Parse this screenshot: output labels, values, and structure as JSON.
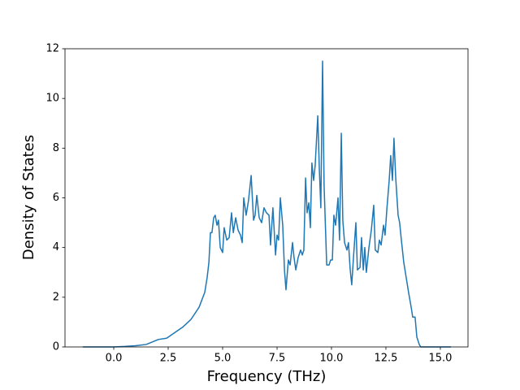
{
  "chart_data": {
    "type": "line",
    "xlabel": "Frequency (THz)",
    "ylabel": "Density of States",
    "x": [
      -1.42,
      0.0,
      0.5,
      1.0,
      1.49,
      2.05,
      2.43,
      3.17,
      3.54,
      3.92,
      4.18,
      4.29,
      4.37,
      4.44,
      4.51,
      4.59,
      4.66,
      4.74,
      4.81,
      4.89,
      5.0,
      5.07,
      5.19,
      5.3,
      5.41,
      5.49,
      5.6,
      5.71,
      5.82,
      5.9,
      5.97,
      6.08,
      6.19,
      6.31,
      6.42,
      6.49,
      6.57,
      6.68,
      6.79,
      6.9,
      7.01,
      7.13,
      7.2,
      7.31,
      7.43,
      7.5,
      7.57,
      7.65,
      7.76,
      7.84,
      7.91,
      8.02,
      8.1,
      8.21,
      8.28,
      8.36,
      8.47,
      8.58,
      8.66,
      8.73,
      8.81,
      8.88,
      8.96,
      9.03,
      9.1,
      9.18,
      9.25,
      9.37,
      9.44,
      9.51,
      9.59,
      9.66,
      9.78,
      9.89,
      9.96,
      10.04,
      10.11,
      10.19,
      10.3,
      10.37,
      10.45,
      10.52,
      10.6,
      10.71,
      10.78,
      10.86,
      10.93,
      11.01,
      11.12,
      11.19,
      11.31,
      11.38,
      11.46,
      11.53,
      11.6,
      11.72,
      11.83,
      11.94,
      12.01,
      12.13,
      12.2,
      12.28,
      12.39,
      12.46,
      12.54,
      12.65,
      12.72,
      12.8,
      12.87,
      12.95,
      13.06,
      13.13,
      13.21,
      13.32,
      13.43,
      13.54,
      13.66,
      13.73,
      13.84,
      13.92,
      14.03,
      14.1,
      15.0,
      15.49
    ],
    "series": [
      {
        "color": "#1f77b4",
        "values": [
          0,
          0,
          0.02,
          0.05,
          0.1,
          0.3,
          0.35,
          0.8,
          1.1,
          1.6,
          2.2,
          2.8,
          3.4,
          4.6,
          4.6,
          5.2,
          5.3,
          4.9,
          5.1,
          4.0,
          3.8,
          4.8,
          4.3,
          4.4,
          5.4,
          4.6,
          5.2,
          4.7,
          4.5,
          4.2,
          6.0,
          5.3,
          5.9,
          6.9,
          5.1,
          5.3,
          6.1,
          5.2,
          5.0,
          5.6,
          5.4,
          5.3,
          4.1,
          5.6,
          3.7,
          4.5,
          4.3,
          6.0,
          4.9,
          3.1,
          2.3,
          3.5,
          3.3,
          4.2,
          3.6,
          3.1,
          3.6,
          3.9,
          3.7,
          3.9,
          6.8,
          5.4,
          5.8,
          4.8,
          7.4,
          6.7,
          7.3,
          9.3,
          7.2,
          5.6,
          11.5,
          6.5,
          3.3,
          3.3,
          3.5,
          3.5,
          5.3,
          4.9,
          6.0,
          4.3,
          8.6,
          5.1,
          4.2,
          3.9,
          4.2,
          3.1,
          2.5,
          3.6,
          5.0,
          3.1,
          3.2,
          4.4,
          3.1,
          4.0,
          3.0,
          4.0,
          4.7,
          5.7,
          3.9,
          3.8,
          4.3,
          4.1,
          4.9,
          4.5,
          5.5,
          6.7,
          7.7,
          6.7,
          8.4,
          6.8,
          5.3,
          5.0,
          4.3,
          3.4,
          2.8,
          2.2,
          1.6,
          1.2,
          1.2,
          0.4,
          0.1,
          0,
          0,
          0
        ]
      }
    ],
    "xlim": [
      -2.24,
      16.27
    ],
    "ylim": [
      0,
      12
    ],
    "xticks": [
      {
        "value": 0,
        "label": "0.0"
      },
      {
        "value": 2.5,
        "label": "2.5"
      },
      {
        "value": 5,
        "label": "5.0"
      },
      {
        "value": 7.5,
        "label": "7.5"
      },
      {
        "value": 10,
        "label": "10.0"
      },
      {
        "value": 12.5,
        "label": "12.5"
      },
      {
        "value": 15,
        "label": "15.0"
      }
    ],
    "yticks": [
      0,
      2,
      4,
      6,
      8,
      10,
      12
    ]
  }
}
